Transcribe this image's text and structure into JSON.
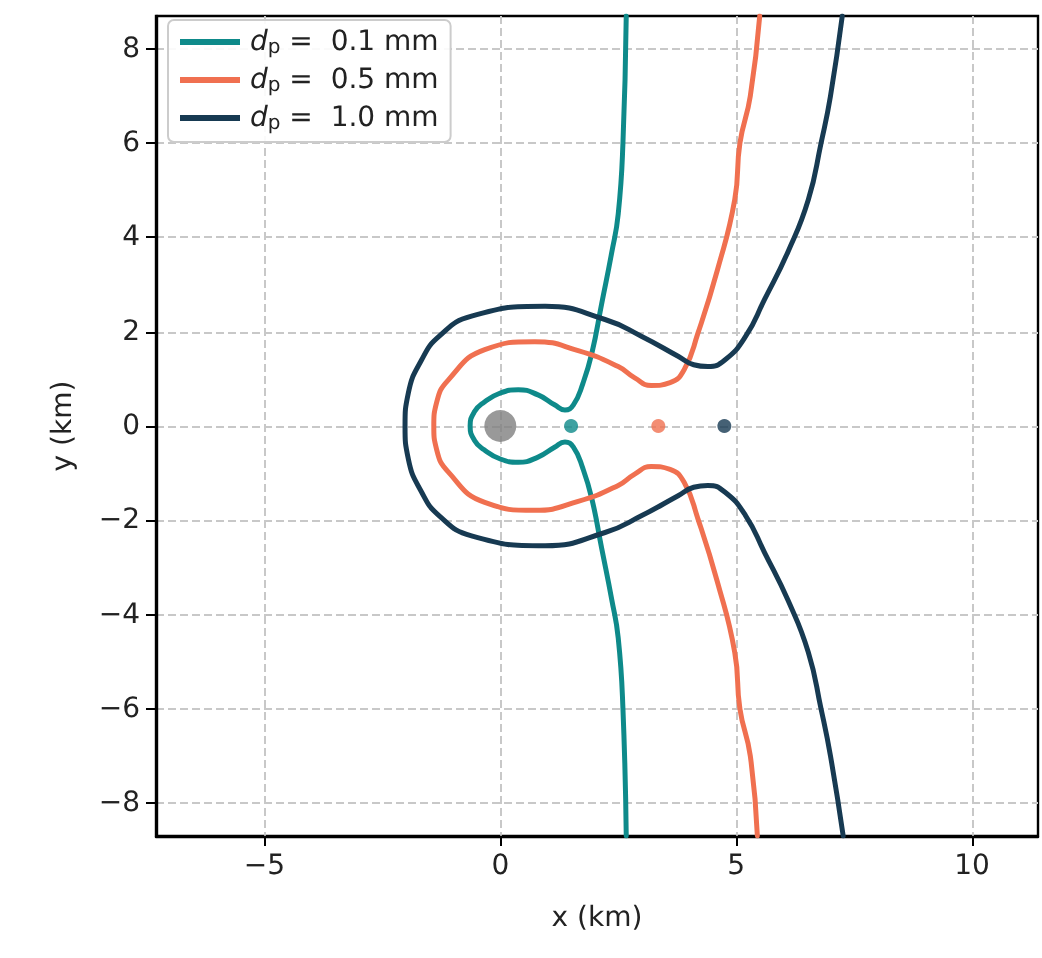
{
  "chart_data": {
    "type": "line",
    "xlabel": "x (km)",
    "ylabel": "y (km)",
    "xlim": [
      -7.3,
      11.4
    ],
    "xticks": [
      -5,
      0,
      5,
      10
    ],
    "ylim": [
      -8.7,
      8.7
    ],
    "yticks": [
      -8,
      -6,
      -4,
      -2,
      0,
      2,
      4,
      6,
      8
    ],
    "grid": true,
    "legend": "top left",
    "marker": "none",
    "line_style": "solid",
    "series": [
      {
        "name": "d$_{p}$ =  0.1 mm",
        "color": "#0e8a8a",
        "x": [
          2.67,
          2.6,
          2.5,
          2.36,
          2.15,
          1.94,
          1.75,
          1.55,
          1.37,
          1.15,
          0.8,
          0.38,
          0,
          -0.35,
          -0.55,
          -0.64,
          -0.55,
          -0.35,
          0,
          0.38,
          0.8,
          1.15,
          1.37,
          1.55,
          1.75,
          1.94,
          2.15,
          2.36,
          2.5,
          2.6,
          2.67
        ],
        "values": [
          8.7,
          6,
          4.5,
          3.67,
          2.6,
          1.54,
          0.9,
          0.45,
          0.34,
          0.45,
          0.66,
          0.77,
          0.7,
          0.5,
          0.3,
          0,
          -0.3,
          -0.5,
          -0.7,
          -0.77,
          -0.66,
          -0.45,
          -0.34,
          -0.45,
          -0.9,
          -1.54,
          -2.6,
          -3.67,
          -4.5,
          -6,
          -8.7
        ]
      },
      {
        "name": "d$_{p}$ =  0.5 mm",
        "color": "#f07050",
        "x": [
          5.5,
          5.3,
          5.08,
          4.97,
          4.6,
          4.19,
          3.9,
          3.6,
          3.2,
          2.85,
          2.5,
          1.65,
          0.73,
          -0.33,
          -1.1,
          -1.35,
          -1.41,
          -1.35,
          -1.1,
          -0.33,
          0.73,
          1.65,
          2.5,
          2.85,
          3.2,
          3.6,
          3.9,
          4.19,
          4.6,
          4.97,
          5.08,
          5.3,
          5.45
        ],
        "values": [
          8.7,
          7,
          6,
          4.8,
          3.3,
          1.97,
          1.2,
          0.92,
          0.86,
          1.02,
          1.26,
          1.6,
          1.79,
          1.62,
          0.98,
          0.5,
          0,
          -0.5,
          -0.98,
          -1.62,
          -1.79,
          -1.6,
          -1.26,
          -1.02,
          -0.86,
          -0.92,
          -1.2,
          -1.97,
          -3.3,
          -4.8,
          -6,
          -7,
          -8.7
        ]
      },
      {
        "name": "d$_{p}$ =  1.0 mm",
        "color": "#173a52",
        "x": [
          7.25,
          7.0,
          6.8,
          6.53,
          6.1,
          5.6,
          5.2,
          4.76,
          4.4,
          4.1,
          3.77,
          3.0,
          2.22,
          0.95,
          -0.61,
          -1.3,
          -1.67,
          -1.95,
          -2.02,
          -1.95,
          -1.67,
          -1.3,
          -0.61,
          0.95,
          2.22,
          3.0,
          3.77,
          4.1,
          4.4,
          4.76,
          5.2,
          5.6,
          6.1,
          6.53,
          6.8,
          7.0,
          7.27
        ],
        "values": [
          8.7,
          7,
          6,
          4.8,
          3.7,
          2.68,
          1.9,
          1.4,
          1.26,
          1.3,
          1.48,
          1.9,
          2.26,
          2.54,
          2.33,
          1.9,
          1.4,
          0.7,
          0,
          -0.7,
          -1.4,
          -1.9,
          -2.33,
          -2.54,
          -2.26,
          -1.9,
          -1.48,
          -1.3,
          -1.26,
          -1.4,
          -1.9,
          -2.68,
          -3.7,
          -4.8,
          -6,
          -7,
          -8.7
        ]
      },
      {
        "type": "scatter",
        "marker": "circle",
        "color": "#7f7f7f",
        "x": [
          0
        ],
        "values": [
          0
        ]
      },
      {
        "type": "scatter",
        "marker": "circle",
        "color": "#0e8a8a",
        "x": [
          1.5
        ],
        "values": [
          0
        ]
      },
      {
        "type": "scatter",
        "marker": "circle",
        "color": "#f07050",
        "x": [
          3.35
        ],
        "values": [
          0
        ]
      },
      {
        "type": "scatter",
        "marker": "circle",
        "color": "#173a52",
        "x": [
          4.75
        ],
        "values": [
          0
        ]
      }
    ]
  }
}
